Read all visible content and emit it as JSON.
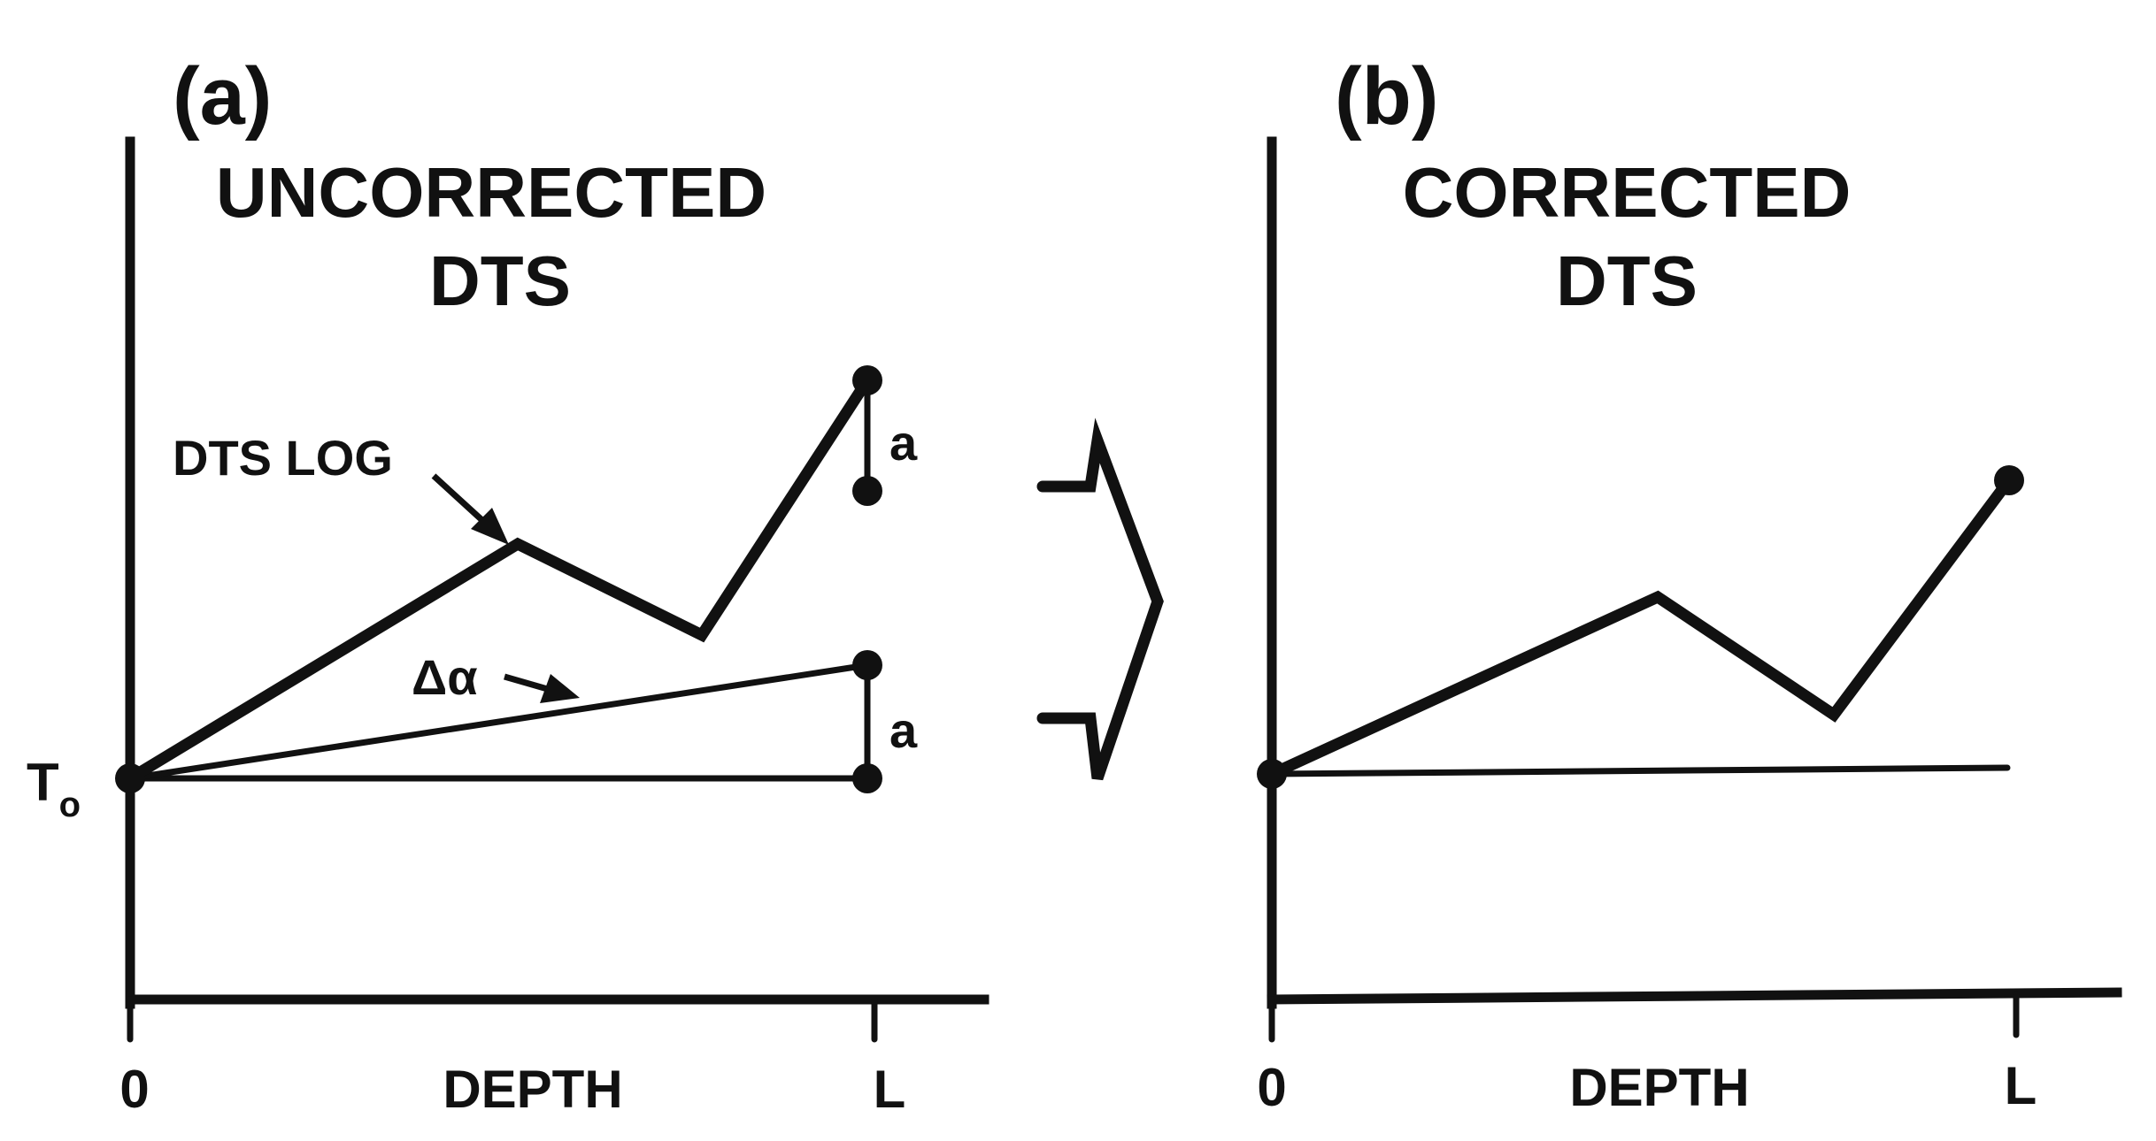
{
  "panel_a": {
    "letter": "(a)",
    "title_line1": "UNCORRECTED",
    "title_line2": "DTS",
    "log_label": "DTS LOG",
    "delta_label": "Δα",
    "offset_label_upper": "a",
    "offset_label_lower": "a",
    "origin_label_main": "T",
    "origin_label_sub": "o",
    "x_tick_start": "0",
    "x_tick_end": "L",
    "x_axis_title": "DEPTH"
  },
  "panel_b": {
    "letter": "(b)",
    "title_line1": "CORRECTED",
    "title_line2": "DTS",
    "x_tick_start": "0",
    "x_tick_end": "L",
    "x_axis_title": "DEPTH"
  },
  "colors": {
    "ink": "#111111",
    "background": "#ffffff"
  }
}
